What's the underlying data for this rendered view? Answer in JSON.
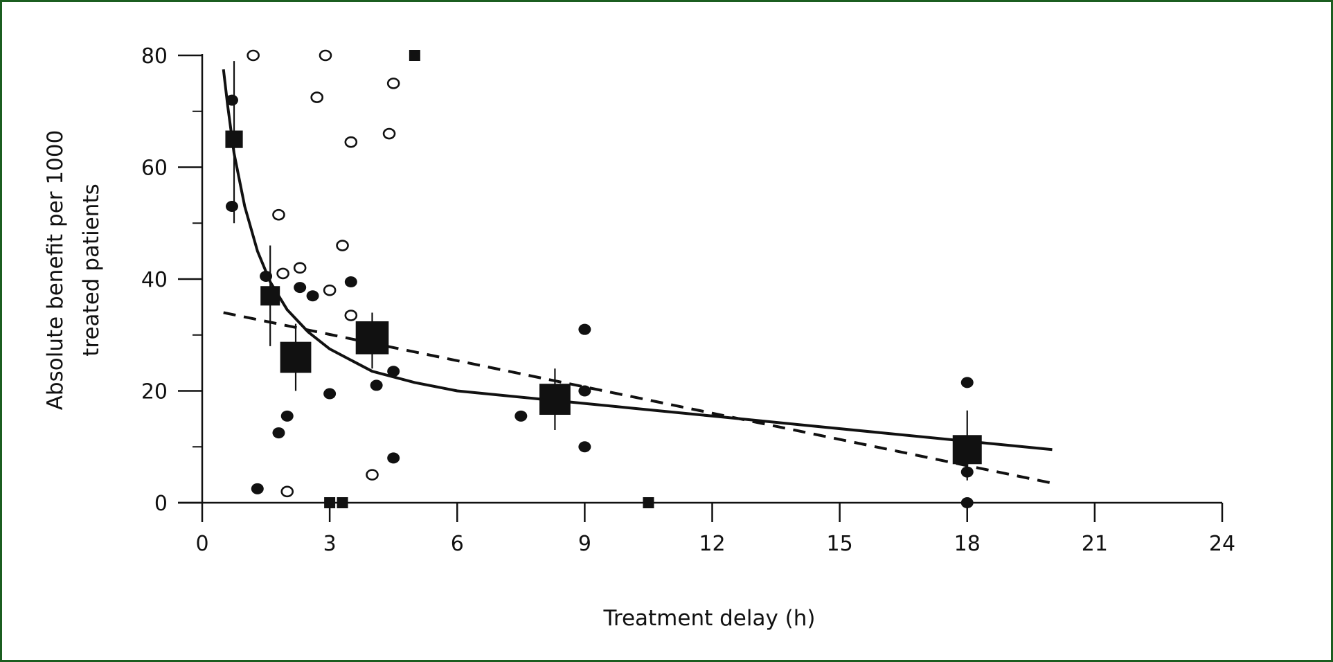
{
  "frame_color": "#1b5e20",
  "chart_data": {
    "type": "scatter",
    "title": "",
    "xlabel": "Treatment delay (h)",
    "ylabel_lines": [
      "Absolute benefit per 1000",
      "treated patients"
    ],
    "xlim": [
      0,
      24
    ],
    "ylim": [
      0,
      80
    ],
    "x_ticks": [
      0,
      3,
      6,
      9,
      12,
      15,
      18,
      21,
      24
    ],
    "y_ticks": [
      0,
      20,
      40,
      60,
      80
    ],
    "x_tick_labels": [
      "0",
      "3",
      "6",
      "9",
      "12",
      "15",
      "18",
      "21",
      "24"
    ],
    "y_tick_labels": [
      "0",
      "20",
      "40",
      "60",
      "80"
    ],
    "grid": false,
    "series": [
      {
        "marker": "open-circle",
        "points": [
          {
            "x": 1.2,
            "y": 80
          },
          {
            "x": 2.9,
            "y": 80
          },
          {
            "x": 2.7,
            "y": 72.5
          },
          {
            "x": 4.5,
            "y": 75
          },
          {
            "x": 4.4,
            "y": 66
          },
          {
            "x": 3.5,
            "y": 64.5
          },
          {
            "x": 1.8,
            "y": 51.5
          },
          {
            "x": 3.3,
            "y": 46
          },
          {
            "x": 2.3,
            "y": 42
          },
          {
            "x": 1.9,
            "y": 41
          },
          {
            "x": 3.0,
            "y": 38
          },
          {
            "x": 3.5,
            "y": 33.5
          },
          {
            "x": 2.0,
            "y": 2
          },
          {
            "x": 4.0,
            "y": 5
          }
        ]
      },
      {
        "marker": "filled-circle",
        "points": [
          {
            "x": 0.7,
            "y": 72
          },
          {
            "x": 0.7,
            "y": 53
          },
          {
            "x": 1.5,
            "y": 40.5
          },
          {
            "x": 2.3,
            "y": 38.5
          },
          {
            "x": 2.6,
            "y": 37
          },
          {
            "x": 3.5,
            "y": 39.5
          },
          {
            "x": 4.5,
            "y": 23.5
          },
          {
            "x": 4.1,
            "y": 21
          },
          {
            "x": 3.0,
            "y": 19.5
          },
          {
            "x": 2.0,
            "y": 15.5
          },
          {
            "x": 1.8,
            "y": 12.5
          },
          {
            "x": 1.3,
            "y": 2.5
          },
          {
            "x": 4.5,
            "y": 8
          },
          {
            "x": 7.5,
            "y": 15.5
          },
          {
            "x": 9.0,
            "y": 31
          },
          {
            "x": 9.0,
            "y": 20
          },
          {
            "x": 9.0,
            "y": 10
          },
          {
            "x": 18.0,
            "y": 21.5
          },
          {
            "x": 18.0,
            "y": 5.5
          },
          {
            "x": 18.0,
            "y": 0
          }
        ]
      },
      {
        "marker": "small-filled-square",
        "points": [
          {
            "x": 5.0,
            "y": 80
          },
          {
            "x": 3.0,
            "y": 0
          },
          {
            "x": 3.3,
            "y": 0
          },
          {
            "x": 10.5,
            "y": 0
          }
        ]
      },
      {
        "marker": "mean-square-with-error-bar",
        "points": [
          {
            "x": 0.75,
            "y": 65,
            "size": 0.9,
            "lo": 50,
            "hi": 79
          },
          {
            "x": 1.6,
            "y": 37,
            "size": 1.0,
            "lo": 28,
            "hi": 46
          },
          {
            "x": 2.2,
            "y": 26,
            "size": 1.6,
            "lo": 20,
            "hi": 32
          },
          {
            "x": 4.0,
            "y": 29.5,
            "size": 1.7,
            "lo": 24,
            "hi": 34
          },
          {
            "x": 8.3,
            "y": 18.5,
            "size": 1.6,
            "lo": 13,
            "hi": 24
          },
          {
            "x": 18.0,
            "y": 9.5,
            "size": 1.5,
            "lo": 4,
            "hi": 16.5
          }
        ]
      }
    ],
    "curves": [
      {
        "style": "solid",
        "description_free": true,
        "points": [
          [
            0.5,
            77.5
          ],
          [
            0.6,
            71
          ],
          [
            0.75,
            62.5
          ],
          [
            1.0,
            53
          ],
          [
            1.3,
            45
          ],
          [
            1.6,
            39.5
          ],
          [
            2.0,
            34.5
          ],
          [
            2.5,
            30.5
          ],
          [
            3.0,
            27.5
          ],
          [
            4.0,
            23.5
          ],
          [
            5.0,
            21.5
          ],
          [
            6.0,
            20
          ],
          [
            8.0,
            18.5
          ],
          [
            10.0,
            17
          ],
          [
            12.0,
            15.5
          ],
          [
            14.0,
            14
          ],
          [
            16.0,
            12.5
          ],
          [
            18.0,
            11
          ],
          [
            20.0,
            9.5
          ]
        ]
      },
      {
        "style": "dashed",
        "points": [
          [
            0.5,
            34
          ],
          [
            20.0,
            3.5
          ]
        ]
      }
    ]
  }
}
